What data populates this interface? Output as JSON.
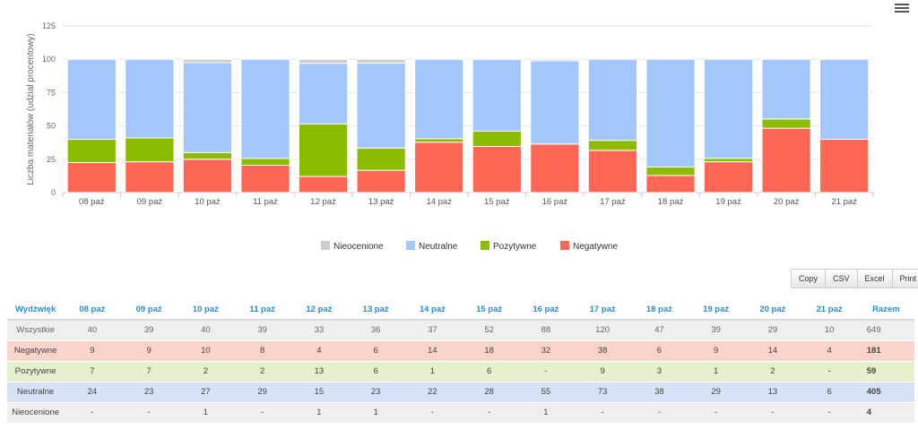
{
  "chart_data": {
    "type": "bar",
    "stacked": true,
    "ylabel": "Liczba materiałów (udział procentowy)",
    "ylim": [
      0,
      125
    ],
    "yticks": [
      0,
      25,
      50,
      75,
      100,
      125
    ],
    "grid": true,
    "legend_position": "bottom",
    "categories": [
      "08 paź",
      "09 paź",
      "10 paź",
      "11 paź",
      "12 paź",
      "13 paź",
      "14 paź",
      "15 paź",
      "16 paź",
      "17 paź",
      "18 paź",
      "19 paź",
      "20 paź",
      "21 paź"
    ],
    "series": [
      {
        "name": "Negatywne",
        "color": "#ff6654",
        "values": [
          22.5,
          23.1,
          25.0,
          20.5,
          12.1,
          16.7,
          37.8,
          34.6,
          36.4,
          31.7,
          12.8,
          23.1,
          48.3,
          40.0
        ]
      },
      {
        "name": "Pozytywne",
        "color": "#8bbc00",
        "values": [
          17.5,
          17.9,
          5.0,
          5.1,
          39.4,
          16.7,
          2.7,
          11.5,
          0,
          7.5,
          6.4,
          2.6,
          6.9,
          0
        ]
      },
      {
        "name": "Neutralne",
        "color": "#a3c6fb",
        "values": [
          60.0,
          59.0,
          67.5,
          74.4,
          45.5,
          63.9,
          59.5,
          53.8,
          62.5,
          60.8,
          80.8,
          74.3,
          44.8,
          60.0
        ]
      },
      {
        "name": "Nieocenione",
        "color": "#cccccc",
        "values": [
          0,
          0,
          2.5,
          0,
          3.0,
          2.7,
          0,
          0,
          1.1,
          0,
          0,
          0,
          0,
          0
        ]
      }
    ]
  },
  "legend": [
    {
      "name": "Nieocenione",
      "color": "#cccccc"
    },
    {
      "name": "Neutralne",
      "color": "#a3c6fb"
    },
    {
      "name": "Pozytywne",
      "color": "#8bbc00"
    },
    {
      "name": "Negatywne",
      "color": "#ff6654"
    }
  ],
  "export": {
    "copy": "Copy",
    "csv": "CSV",
    "excel": "Excel",
    "print": "Print"
  },
  "table": {
    "header": [
      "Wydźwięk",
      "08 paź",
      "09 paź",
      "10 paź",
      "11 paź",
      "12 paź",
      "13 paź",
      "14 paź",
      "15 paź",
      "16 paź",
      "17 paź",
      "18 paź",
      "19 paź",
      "20 paź",
      "21 paź",
      "Razem"
    ],
    "rows": [
      {
        "cls": "r-all",
        "cells": [
          "Wszystkie",
          "40",
          "39",
          "40",
          "39",
          "33",
          "36",
          "37",
          "52",
          "88",
          "120",
          "47",
          "39",
          "29",
          "10",
          "649"
        ]
      },
      {
        "cls": "r-neg",
        "cells": [
          "Negatywne",
          "9",
          "9",
          "10",
          "8",
          "4",
          "6",
          "14",
          "18",
          "32",
          "38",
          "6",
          "9",
          "14",
          "4",
          "181"
        ]
      },
      {
        "cls": "r-poz",
        "cells": [
          "Pozytywne",
          "7",
          "7",
          "2",
          "2",
          "13",
          "6",
          "1",
          "6",
          "-",
          "9",
          "3",
          "1",
          "2",
          "-",
          "59"
        ]
      },
      {
        "cls": "r-neu",
        "cells": [
          "Neutralne",
          "24",
          "23",
          "27",
          "29",
          "15",
          "23",
          "22",
          "28",
          "55",
          "73",
          "38",
          "29",
          "13",
          "6",
          "405"
        ]
      },
      {
        "cls": "r-nie",
        "cells": [
          "Nieocenione",
          "-",
          "-",
          "1",
          "-",
          "1",
          "1",
          "-",
          "-",
          "1",
          "-",
          "-",
          "-",
          "-",
          "-",
          "4"
        ]
      }
    ]
  }
}
